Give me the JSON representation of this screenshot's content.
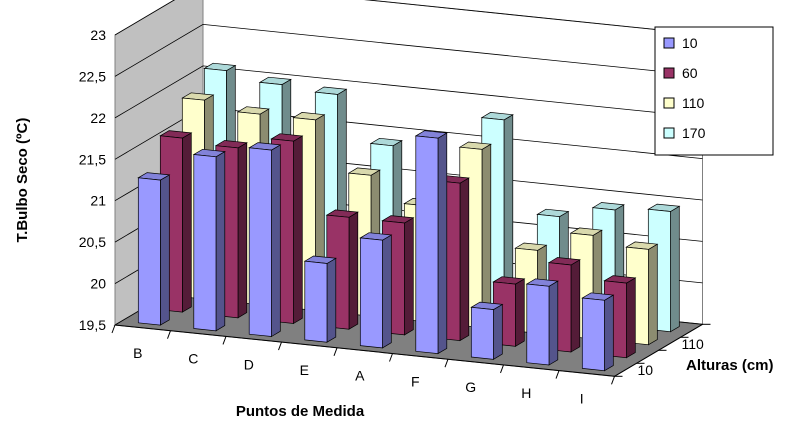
{
  "chart_data": {
    "type": "bar3d",
    "title": "",
    "ylabel": "T.Bulbo Seco (ºC)",
    "xlabel": "Puntos de Medida",
    "zlabel": "Alturas (cm)",
    "ylim": [
      19.5,
      23
    ],
    "y_ticks": [
      "19,5",
      "20",
      "20,5",
      "21",
      "21,5",
      "22",
      "22,5",
      "23"
    ],
    "categories": [
      "B",
      "C",
      "D",
      "E",
      "A",
      "F",
      "G",
      "H",
      "I"
    ],
    "depth_tick_labels": [
      "10",
      "110"
    ],
    "legend_position": "right",
    "series": [
      {
        "name": "10",
        "color": "#9999ff",
        "values": [
          21.25,
          21.6,
          21.75,
          20.45,
          20.8,
          22.1,
          20.1,
          20.45,
          20.35
        ]
      },
      {
        "name": "60",
        "color": "#993366",
        "values": [
          21.6,
          21.55,
          21.7,
          20.85,
          20.85,
          21.4,
          20.25,
          20.55,
          20.4
        ]
      },
      {
        "name": "110",
        "color": "#ffffcc",
        "values": [
          21.9,
          21.8,
          21.8,
          21.2,
          20.9,
          21.65,
          20.5,
          20.75,
          20.65
        ]
      },
      {
        "name": "170",
        "color": "#ccffff",
        "values": [
          22.1,
          22.0,
          21.95,
          21.4,
          20.0,
          21.85,
          20.75,
          20.9,
          20.95
        ]
      }
    ]
  }
}
